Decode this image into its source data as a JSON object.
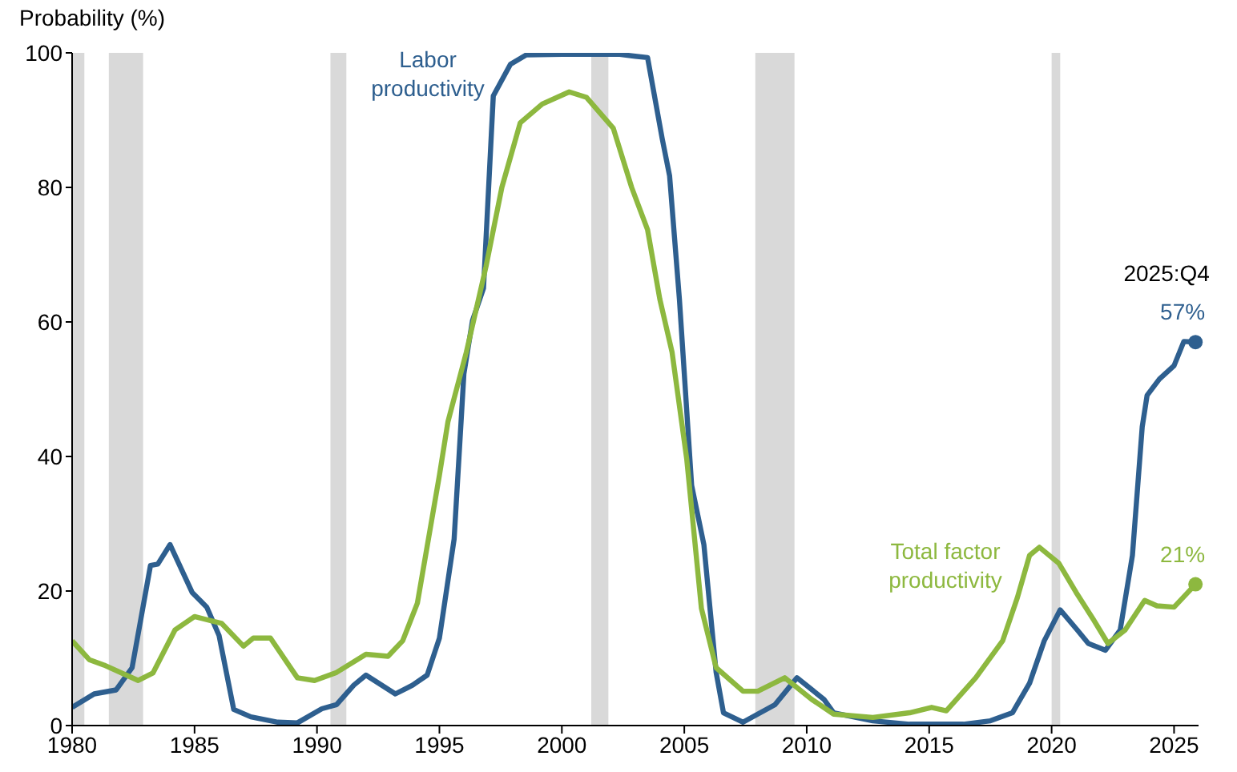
{
  "chart_data": {
    "type": "line",
    "ylabel": "Probability (%)",
    "xlim": [
      1980,
      2026
    ],
    "xticks": [
      1980,
      1985,
      1990,
      1995,
      2000,
      2005,
      2010,
      2015,
      2020,
      2025
    ],
    "ylim": [
      0,
      100
    ],
    "yticks": [
      0,
      20,
      40,
      60,
      80,
      100
    ],
    "grid": false,
    "bands": [
      {
        "axis": "x",
        "from": 1980.0,
        "to": 1980.5,
        "color": "#d9d9d9"
      },
      {
        "axis": "x",
        "from": 1981.5,
        "to": 1982.9,
        "color": "#d9d9d9"
      },
      {
        "axis": "x",
        "from": 1990.55,
        "to": 1991.2,
        "color": "#d9d9d9"
      },
      {
        "axis": "x",
        "from": 2001.2,
        "to": 2001.9,
        "color": "#d9d9d9"
      },
      {
        "axis": "x",
        "from": 2007.9,
        "to": 2009.5,
        "color": "#d9d9d9"
      },
      {
        "axis": "x",
        "from": 2020.0,
        "to": 2020.35,
        "color": "#d9d9d9"
      }
    ],
    "series": [
      {
        "name": "Labor productivity",
        "color": "#2e5f8f",
        "x": [
          1980.0,
          1980.9,
          1981.8,
          1982.45,
          1983.2,
          1983.5,
          1984.0,
          1984.9,
          1985.5,
          1986.0,
          1986.6,
          1987.3,
          1988.4,
          1989.2,
          1990.2,
          1990.8,
          1991.5,
          1992.0,
          1993.2,
          1993.9,
          1994.5,
          1995.0,
          1995.6,
          1996.0,
          1996.35,
          1996.8,
          1997.2,
          1997.9,
          1998.55,
          2000.0,
          2002.3,
          2003.0,
          2003.5,
          2004.1,
          2004.4,
          2004.8,
          2005.3,
          2005.8,
          2006.3,
          2006.6,
          2007.4,
          2008.7,
          2009.6,
          2010.7,
          2011.1,
          2012.7,
          2014.2,
          2016.4,
          2017.5,
          2018.4,
          2019.1,
          2019.7,
          2020.35,
          2021.05,
          2021.5,
          2022.2,
          2022.8,
          2023.3,
          2023.7,
          2023.9,
          2024.4,
          2025.0,
          2025.4,
          2025.875
        ],
        "values": [
          2.7,
          4.7,
          5.3,
          8.6,
          23.8,
          24,
          26.9,
          19.8,
          17.6,
          13.4,
          2.4,
          1.3,
          0.5,
          0.4,
          2.5,
          3.1,
          6,
          7.5,
          4.7,
          6,
          7.5,
          13,
          27.7,
          52.3,
          60.2,
          65,
          93.6,
          98.3,
          99.7,
          99.8,
          99.8,
          99.5,
          99.3,
          87.2,
          81.7,
          63.4,
          35.7,
          26.9,
          7.9,
          1.9,
          0.5,
          3.1,
          7.1,
          3.9,
          1.9,
          0.7,
          0.2,
          0.2,
          0.7,
          1.9,
          6.3,
          12.6,
          17.2,
          14.2,
          12.2,
          11.2,
          14.2,
          25.3,
          44.4,
          49.1,
          51.5,
          53.5,
          57.1,
          57
        ],
        "value_labels": [
          null,
          null,
          null,
          null,
          null,
          null,
          null,
          null,
          null,
          null,
          null,
          null,
          null,
          null,
          null,
          null,
          null,
          null,
          null,
          null,
          null,
          null,
          null,
          null,
          null,
          null,
          null,
          null,
          null,
          null,
          null,
          null,
          null,
          null,
          null,
          null,
          null,
          null,
          null,
          null,
          null,
          null,
          null,
          null,
          null,
          null,
          null,
          null,
          null,
          null,
          null,
          null,
          null,
          null,
          null,
          null,
          null,
          null,
          null,
          null,
          null,
          null,
          null,
          "57%"
        ]
      },
      {
        "name": "Total factor productivity",
        "color": "#8db83f",
        "x": [
          1980.0,
          1980.7,
          1981.3,
          1982.7,
          1983.3,
          1984.2,
          1985.0,
          1986.1,
          1987.0,
          1987.4,
          1988.1,
          1989.2,
          1989.9,
          1990.8,
          1992.0,
          1992.9,
          1993.5,
          1994.1,
          1995.0,
          1995.35,
          1996.1,
          1996.9,
          1997.55,
          1998.3,
          1999.2,
          2000.3,
          2001.0,
          2002.1,
          2002.85,
          2003.5,
          2004.0,
          2004.5,
          2005.1,
          2005.7,
          2006.3,
          2007.4,
          2008.0,
          2009.1,
          2010.2,
          2011.1,
          2012.7,
          2014.2,
          2015.1,
          2015.7,
          2016.9,
          2018.0,
          2018.6,
          2019.1,
          2019.5,
          2020.3,
          2021.0,
          2021.7,
          2022.3,
          2023.0,
          2023.8,
          2024.3,
          2025.0,
          2025.875
        ],
        "values": [
          12.6,
          9.8,
          9.0,
          6.7,
          7.8,
          14.2,
          16.2,
          15.2,
          11.8,
          13,
          13,
          7.1,
          6.7,
          7.9,
          10.6,
          10.3,
          12.6,
          18.2,
          37.2,
          45.2,
          55.5,
          68.2,
          80,
          89.6,
          92.4,
          94.2,
          93.4,
          88.8,
          80,
          73.7,
          63.4,
          55.5,
          39.6,
          17.4,
          8.6,
          5.1,
          5.1,
          7.1,
          3.9,
          1.7,
          1.2,
          1.9,
          2.7,
          2.2,
          7.1,
          12.6,
          19,
          25.3,
          26.5,
          24.1,
          19.8,
          15.8,
          12.2,
          14.2,
          18.6,
          17.8,
          17.6,
          21
        ],
        "value_labels": [
          null,
          null,
          null,
          null,
          null,
          null,
          null,
          null,
          null,
          null,
          null,
          null,
          null,
          null,
          null,
          null,
          null,
          null,
          null,
          null,
          null,
          null,
          null,
          null,
          null,
          null,
          null,
          null,
          null,
          null,
          null,
          null,
          null,
          null,
          null,
          null,
          null,
          null,
          null,
          null,
          null,
          null,
          null,
          null,
          null,
          null,
          null,
          null,
          null,
          null,
          null,
          null,
          null,
          null,
          null,
          null,
          null,
          "21%"
        ]
      }
    ],
    "annotations": [
      {
        "text": "2025:Q4",
        "x": 2025.875,
        "y": 57
      }
    ]
  }
}
